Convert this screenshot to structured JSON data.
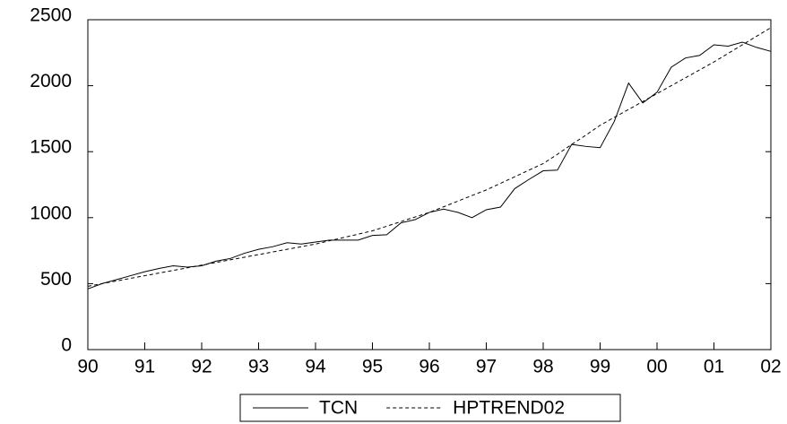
{
  "chart_data": {
    "type": "line",
    "x": [
      90,
      90.25,
      90.5,
      90.75,
      91,
      91.25,
      91.5,
      91.75,
      92,
      92.25,
      92.5,
      92.75,
      93,
      93.25,
      93.5,
      93.75,
      94,
      94.25,
      94.5,
      94.75,
      95,
      95.25,
      95.5,
      95.75,
      96,
      96.25,
      96.5,
      96.75,
      97,
      97.25,
      97.5,
      97.75,
      98,
      98.25,
      98.5,
      98.75,
      99,
      99.25,
      99.5,
      99.75,
      100,
      100.25,
      100.5,
      100.75,
      101,
      101.25,
      101.5,
      101.75,
      102
    ],
    "series": [
      {
        "name": "TCN",
        "color": "#000000",
        "dash": "solid",
        "values": [
          460,
          500,
          530,
          560,
          590,
          615,
          635,
          625,
          635,
          670,
          690,
          730,
          760,
          780,
          810,
          800,
          815,
          830,
          830,
          830,
          865,
          870,
          960,
          985,
          1040,
          1065,
          1040,
          1000,
          1060,
          1080,
          1220,
          1290,
          1355,
          1360,
          1555,
          1540,
          1530,
          1730,
          2020,
          1870,
          1950,
          2140,
          2210,
          2230,
          2310,
          2300,
          2330,
          2290,
          2260
        ]
      },
      {
        "name": "HPTREND02",
        "color": "#000000",
        "dash": "dashed",
        "values": [
          480,
          500,
          520,
          540,
          560,
          580,
          600,
          620,
          640,
          660,
          680,
          700,
          720,
          740,
          760,
          780,
          800,
          825,
          850,
          875,
          900,
          935,
          970,
          1005,
          1040,
          1082,
          1125,
          1168,
          1210,
          1260,
          1310,
          1360,
          1410,
          1480,
          1555,
          1625,
          1700,
          1760,
          1820,
          1880,
          1940,
          2000,
          2060,
          2120,
          2180,
          2245,
          2310,
          2375,
          2440
        ]
      }
    ],
    "xlim": [
      90,
      102
    ],
    "xticks": [
      90,
      91,
      92,
      93,
      94,
      95,
      96,
      97,
      98,
      99,
      {
        "value": 100,
        "label": "00"
      },
      {
        "value": 101,
        "label": "01"
      },
      {
        "value": 102,
        "label": "02"
      }
    ],
    "ylim": [
      0,
      2500
    ],
    "yticks": [
      0,
      500,
      1000,
      1500,
      2000,
      2500
    ],
    "grid": false,
    "legend": "bottom"
  }
}
